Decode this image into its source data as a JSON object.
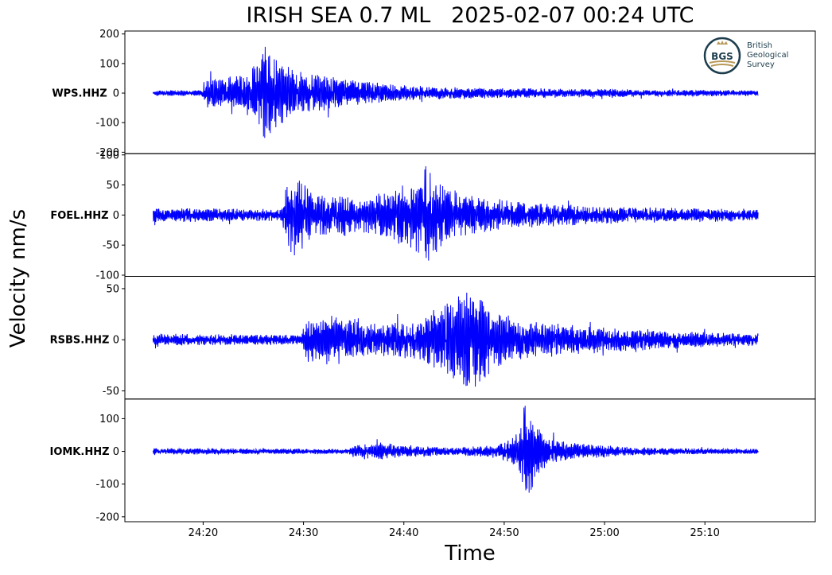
{
  "chart_data": {
    "type": "line",
    "title": "IRISH SEA 0.7 ML   2025-02-07 00:24 UTC",
    "xlabel": "Time",
    "ylabel": "Velocity nm/s",
    "x_tick_labels": [
      "24:20",
      "24:30",
      "24:40",
      "24:50",
      "25:00",
      "25:10"
    ],
    "x_tick_minutes": [
      20,
      30,
      40,
      50,
      60,
      70
    ],
    "xlim_minutes": [
      12.2,
      81.0
    ],
    "x_start_minutes": 15.0,
    "x_end_minutes": 75.3,
    "grid": false,
    "line_color": "#0000ff",
    "series": [
      {
        "name": "WPS.HHZ",
        "ylim": [
          -205,
          210
        ],
        "yticks": [
          200,
          100,
          0,
          -100,
          -200
        ],
        "ytick_labels": [
          "200",
          "100",
          "0",
          "-100",
          "-200"
        ],
        "noise": 8,
        "envelope": [
          [
            15,
            10
          ],
          [
            19.8,
            10
          ],
          [
            20.2,
            55
          ],
          [
            21,
            55
          ],
          [
            24,
            65
          ],
          [
            25.5,
            110
          ],
          [
            26.3,
            185
          ],
          [
            27.2,
            120
          ],
          [
            29,
            80
          ],
          [
            32,
            60
          ],
          [
            36,
            40
          ],
          [
            40,
            28
          ],
          [
            45,
            20
          ],
          [
            55,
            16
          ],
          [
            65,
            12
          ],
          [
            75.3,
            10
          ]
        ]
      },
      {
        "name": "FOEL.HHZ",
        "ylim": [
          -102,
          102
        ],
        "yticks": [
          100,
          50,
          0,
          -50,
          -100
        ],
        "ytick_labels": [
          "100",
          "50",
          "0",
          "-50",
          "-100"
        ],
        "noise": 9,
        "envelope": [
          [
            15,
            12
          ],
          [
            27.8,
            10
          ],
          [
            28.3,
            55
          ],
          [
            29.2,
            75
          ],
          [
            31,
            38
          ],
          [
            34,
            35
          ],
          [
            36,
            30
          ],
          [
            38,
            40
          ],
          [
            41,
            60
          ],
          [
            42.3,
            95
          ],
          [
            43.3,
            60
          ],
          [
            45,
            40
          ],
          [
            48,
            30
          ],
          [
            52,
            22
          ],
          [
            60,
            15
          ],
          [
            75.3,
            10
          ]
        ]
      },
      {
        "name": "RSBS.HHZ",
        "ylim": [
          -58,
          62
        ],
        "yticks": [
          50,
          0,
          -50
        ],
        "ytick_labels": [
          "50",
          "0",
          "-50"
        ],
        "noise": 5,
        "envelope": [
          [
            15,
            6
          ],
          [
            29.8,
            5
          ],
          [
            30.3,
            22
          ],
          [
            33,
            25
          ],
          [
            38,
            18
          ],
          [
            41,
            20
          ],
          [
            44,
            35
          ],
          [
            46,
            50
          ],
          [
            47.2,
            58
          ],
          [
            48.5,
            35
          ],
          [
            50,
            25
          ],
          [
            53,
            18
          ],
          [
            58,
            14
          ],
          [
            62,
            12
          ],
          [
            68,
            8
          ],
          [
            75.3,
            6
          ]
        ]
      },
      {
        "name": "IOMK.HHZ",
        "ylim": [
          -215,
          160
        ],
        "yticks": [
          100,
          0,
          -100,
          -200
        ],
        "ytick_labels": [
          "100",
          "0",
          "-100",
          "-200"
        ],
        "noise": 8,
        "envelope": [
          [
            15,
            10
          ],
          [
            34.5,
            8
          ],
          [
            35,
            22
          ],
          [
            38,
            28
          ],
          [
            41,
            18
          ],
          [
            45,
            12
          ],
          [
            49,
            20
          ],
          [
            50.5,
            35
          ],
          [
            51.6,
            70
          ],
          [
            52.2,
            190
          ],
          [
            53,
            100
          ],
          [
            54.5,
            40
          ],
          [
            57,
            25
          ],
          [
            62,
            15
          ],
          [
            68,
            10
          ],
          [
            75.3,
            8
          ]
        ]
      }
    ]
  },
  "branding": {
    "logo_mark": "BGS",
    "logo_lines": [
      "British",
      "Geological",
      "Survey"
    ],
    "logo_color": "#1d3d4d",
    "logo_accent": "#b89a5a"
  }
}
